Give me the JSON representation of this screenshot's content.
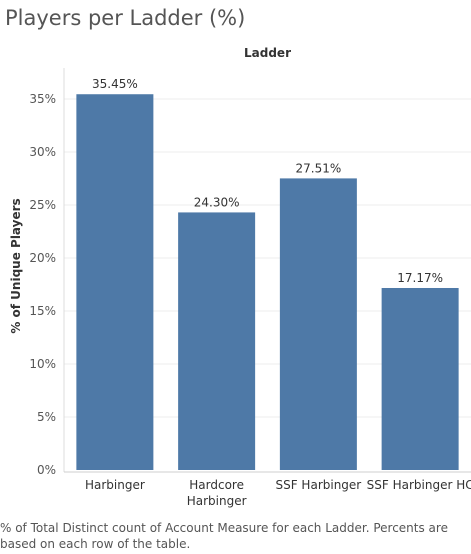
{
  "title": "Players per Ladder (%)",
  "footnote": "% of Total Distinct count of Account Measure for each Ladder. Percents are based on each row of the table.",
  "colors": {
    "bar": "#4e79a7",
    "grid": "#ececec",
    "axis": "#666666",
    "text": "#333333"
  },
  "chart_data": {
    "type": "bar",
    "title": "Players per Ladder (%)",
    "column_header": "Ladder",
    "ylabel": "% of Unique Players",
    "categories": [
      "Harbinger",
      "Hardcore Harbinger",
      "SSF Harbinger",
      "SSF Harbinger HC"
    ],
    "category_lines": [
      [
        "Harbinger"
      ],
      [
        "Hardcore",
        "Harbinger"
      ],
      [
        "SSF Harbinger"
      ],
      [
        "SSF Harbinger HC"
      ]
    ],
    "values": [
      35.45,
      24.3,
      27.51,
      17.17
    ],
    "data_labels": [
      "35.45%",
      "24.30%",
      "27.51%",
      "17.17%"
    ],
    "ylim": [
      0,
      36
    ],
    "yticks": [
      0,
      5,
      10,
      15,
      20,
      25,
      30,
      35
    ],
    "ytick_labels": [
      "0%",
      "5%",
      "10%",
      "15%",
      "20%",
      "25%",
      "30%",
      "35%"
    ],
    "grid": true
  }
}
